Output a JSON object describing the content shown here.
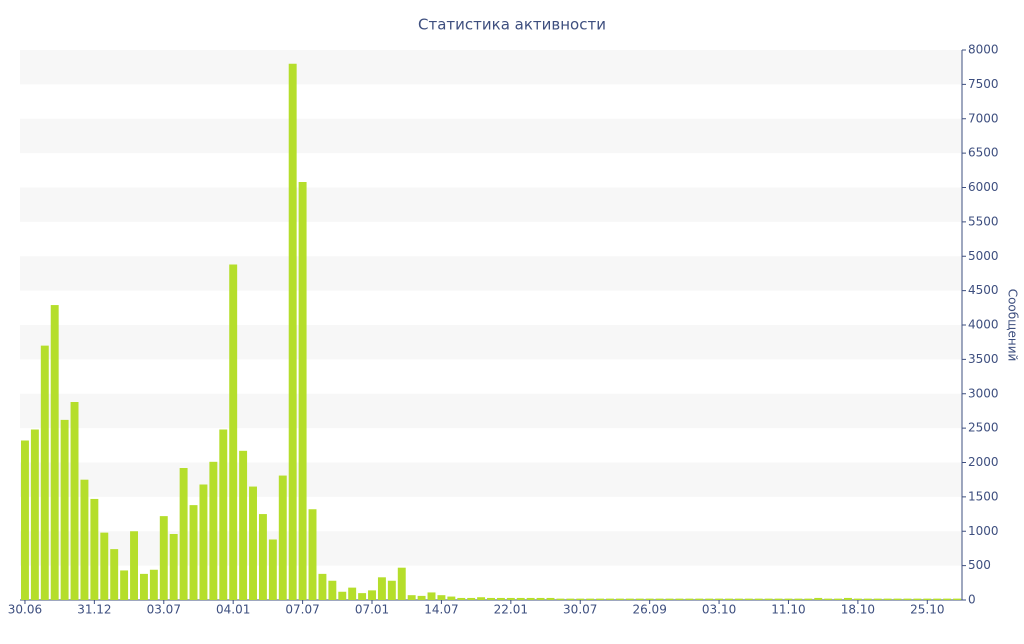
{
  "chart_data": {
    "type": "bar",
    "title": "Статистика активности",
    "y_label": "Сообщений",
    "categories": [
      "30.06",
      null,
      null,
      null,
      null,
      null,
      null,
      "31.12",
      null,
      null,
      null,
      null,
      null,
      null,
      "03.07",
      null,
      null,
      null,
      null,
      null,
      null,
      "04.01",
      null,
      null,
      null,
      null,
      null,
      null,
      "07.07",
      null,
      null,
      null,
      null,
      null,
      null,
      "07.01",
      null,
      null,
      null,
      null,
      null,
      null,
      "14.07",
      null,
      null,
      null,
      null,
      null,
      null,
      "22.01",
      null,
      null,
      null,
      null,
      null,
      null,
      "30.07",
      null,
      null,
      null,
      null,
      null,
      null,
      "26.09",
      null,
      null,
      null,
      null,
      null,
      null,
      "03.10",
      null,
      null,
      null,
      null,
      null,
      null,
      "11.10",
      null,
      null,
      null,
      null,
      null,
      null,
      "18.10",
      null,
      null,
      null,
      null,
      null,
      null,
      "25.10",
      null,
      null,
      null
    ],
    "values": [
      2320,
      2480,
      3700,
      4290,
      2620,
      2880,
      1750,
      1470,
      980,
      740,
      430,
      1000,
      380,
      440,
      1220,
      960,
      1920,
      1380,
      1680,
      2010,
      2480,
      4880,
      2170,
      1650,
      1250,
      880,
      1810,
      7800,
      6080,
      1320,
      380,
      280,
      120,
      180,
      100,
      140,
      330,
      280,
      470,
      70,
      60,
      110,
      70,
      50,
      30,
      30,
      40,
      30,
      30,
      30,
      30,
      30,
      30,
      30,
      20,
      20,
      20,
      20,
      20,
      20,
      20,
      20,
      20,
      20,
      20,
      20,
      20,
      20,
      20,
      20,
      20,
      20,
      20,
      20,
      20,
      20,
      20,
      20,
      20,
      20,
      30,
      20,
      20,
      30,
      20,
      20,
      20,
      20,
      20,
      20,
      20,
      20,
      20,
      20,
      20
    ],
    "color": "#b5de2b",
    "ylim": [
      0,
      8000
    ],
    "yticks": [
      0,
      500,
      1000,
      1500,
      2000,
      2500,
      3000,
      3500,
      4000,
      4500,
      5000,
      5500,
      6000,
      6500,
      7000,
      7500,
      8000
    ],
    "grid": "bands"
  }
}
